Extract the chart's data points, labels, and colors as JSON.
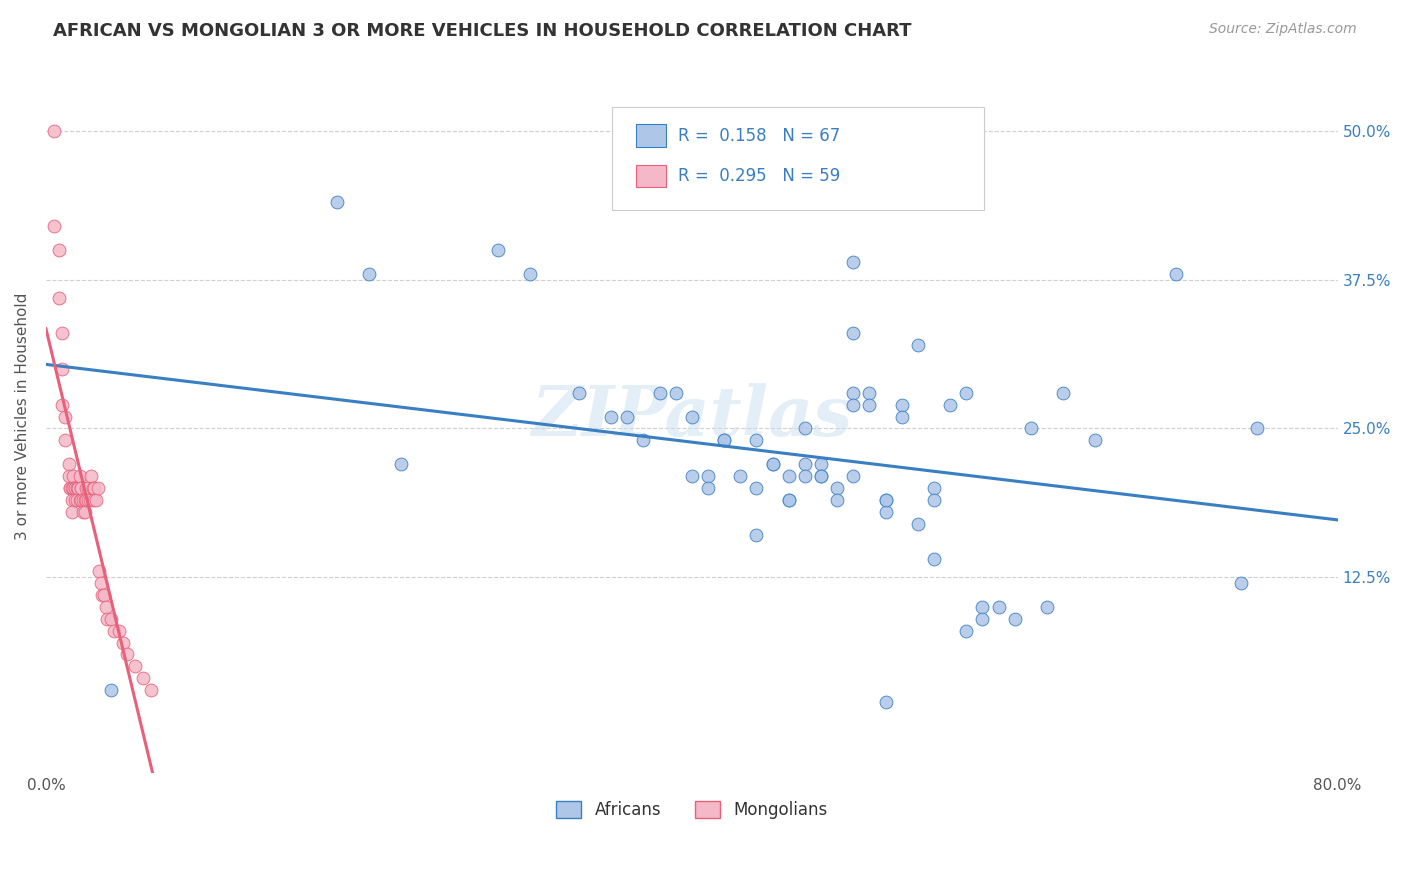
{
  "title": "AFRICAN VS MONGOLIAN 3 OR MORE VEHICLES IN HOUSEHOLD CORRELATION CHART",
  "source": "Source: ZipAtlas.com",
  "ylabel": "3 or more Vehicles in Household",
  "yticks": [
    "50.0%",
    "37.5%",
    "25.0%",
    "12.5%"
  ],
  "ytick_vals": [
    0.5,
    0.375,
    0.25,
    0.125
  ],
  "xlim": [
    0.0,
    0.8
  ],
  "ylim": [
    -0.04,
    0.56
  ],
  "african_color": "#aec6e8",
  "mongolian_color": "#f4b8c8",
  "trend_african_color": "#3a7fc1",
  "trend_mongolian_color": "#e8607a",
  "watermark": "ZIPatlas",
  "african_x": [
    0.04,
    0.18,
    0.2,
    0.22,
    0.28,
    0.3,
    0.33,
    0.35,
    0.36,
    0.37,
    0.38,
    0.39,
    0.4,
    0.4,
    0.41,
    0.41,
    0.42,
    0.42,
    0.43,
    0.44,
    0.44,
    0.44,
    0.45,
    0.45,
    0.46,
    0.46,
    0.46,
    0.47,
    0.47,
    0.47,
    0.48,
    0.48,
    0.48,
    0.49,
    0.49,
    0.5,
    0.5,
    0.51,
    0.51,
    0.52,
    0.52,
    0.53,
    0.53,
    0.54,
    0.55,
    0.55,
    0.56,
    0.57,
    0.57,
    0.58,
    0.59,
    0.6,
    0.61,
    0.62,
    0.63,
    0.5,
    0.5,
    0.52,
    0.54,
    0.65,
    0.7,
    0.74,
    0.75,
    0.52,
    0.55,
    0.58,
    0.5
  ],
  "african_y": [
    0.03,
    0.44,
    0.38,
    0.22,
    0.4,
    0.38,
    0.28,
    0.26,
    0.26,
    0.24,
    0.28,
    0.28,
    0.26,
    0.21,
    0.21,
    0.2,
    0.24,
    0.24,
    0.21,
    0.24,
    0.2,
    0.16,
    0.22,
    0.22,
    0.21,
    0.19,
    0.19,
    0.25,
    0.22,
    0.21,
    0.22,
    0.21,
    0.21,
    0.2,
    0.19,
    0.28,
    0.27,
    0.28,
    0.27,
    0.19,
    0.18,
    0.27,
    0.26,
    0.17,
    0.2,
    0.19,
    0.27,
    0.28,
    0.08,
    0.1,
    0.1,
    0.09,
    0.25,
    0.1,
    0.28,
    0.39,
    0.21,
    0.19,
    0.32,
    0.24,
    0.38,
    0.12,
    0.25,
    0.02,
    0.14,
    0.09,
    0.33
  ],
  "mongolian_x": [
    0.005,
    0.005,
    0.008,
    0.008,
    0.01,
    0.01,
    0.01,
    0.012,
    0.012,
    0.014,
    0.014,
    0.015,
    0.015,
    0.016,
    0.016,
    0.016,
    0.017,
    0.017,
    0.018,
    0.018,
    0.018,
    0.019,
    0.019,
    0.02,
    0.02,
    0.021,
    0.021,
    0.022,
    0.022,
    0.022,
    0.023,
    0.023,
    0.024,
    0.024,
    0.025,
    0.025,
    0.026,
    0.026,
    0.027,
    0.028,
    0.029,
    0.03,
    0.03,
    0.031,
    0.032,
    0.033,
    0.034,
    0.035,
    0.036,
    0.037,
    0.038,
    0.04,
    0.042,
    0.045,
    0.048,
    0.05,
    0.055,
    0.06,
    0.065
  ],
  "mongolian_y": [
    0.5,
    0.42,
    0.4,
    0.36,
    0.33,
    0.3,
    0.27,
    0.26,
    0.24,
    0.22,
    0.21,
    0.2,
    0.2,
    0.2,
    0.19,
    0.18,
    0.21,
    0.2,
    0.2,
    0.2,
    0.19,
    0.2,
    0.19,
    0.2,
    0.2,
    0.21,
    0.19,
    0.2,
    0.2,
    0.19,
    0.19,
    0.18,
    0.19,
    0.18,
    0.2,
    0.19,
    0.2,
    0.19,
    0.19,
    0.21,
    0.2,
    0.2,
    0.19,
    0.19,
    0.2,
    0.13,
    0.12,
    0.11,
    0.11,
    0.1,
    0.09,
    0.09,
    0.08,
    0.08,
    0.07,
    0.06,
    0.05,
    0.04,
    0.03
  ]
}
